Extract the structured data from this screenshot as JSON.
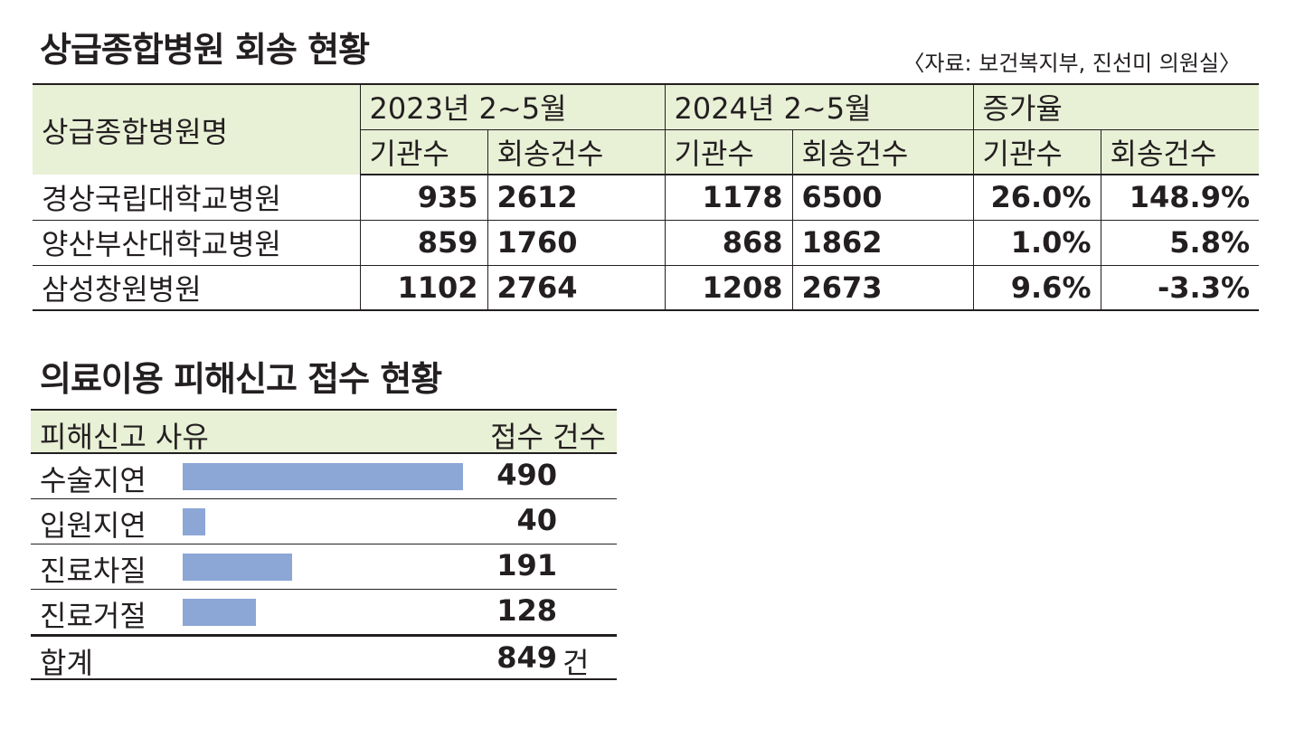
{
  "table1": {
    "title": "상급종합병원 회송 현황",
    "source": "〈자료: 보건복지부, 진선미 의원실〉",
    "header": {
      "name_col": "상급종합병원명",
      "group_2023": "2023년 2~5월",
      "group_2024": "2024년 2~5월",
      "group_rate": "증가율",
      "sub_institutions": "기관수",
      "sub_referrals": "회송건수"
    },
    "rows": [
      {
        "name": "경상국립대학교병원",
        "inst_2023": "935",
        "ref_2023": "2612",
        "inst_2024": "1178",
        "ref_2024": "6500",
        "inst_rate": "26.0%",
        "ref_rate": "148.9%"
      },
      {
        "name": "양산부산대학교병원",
        "inst_2023": "859",
        "ref_2023": "1760",
        "inst_2024": "868",
        "ref_2024": "1862",
        "inst_rate": "1.0%",
        "ref_rate": "5.8%"
      },
      {
        "name": "삼성창원병원",
        "inst_2023": "1102",
        "ref_2023": "2764",
        "inst_2024": "1208",
        "ref_2024": "2673",
        "inst_rate": "9.6%",
        "ref_rate": "-3.3%"
      }
    ]
  },
  "chart_data": {
    "type": "bar",
    "title": "의료이용 피해신고 접수 현황",
    "category_header": "피해신고 사유",
    "value_header": "접수 건수",
    "categories": [
      "수술지연",
      "입원지연",
      "진료차질",
      "진료거절"
    ],
    "values": [
      490,
      40,
      191,
      128
    ],
    "total_label": "합계",
    "total_value": "849",
    "total_unit": "건",
    "xlim": [
      0,
      490
    ],
    "colors": {
      "bar": "#8ca6d6",
      "header_bg": "#e8f0d6"
    }
  }
}
